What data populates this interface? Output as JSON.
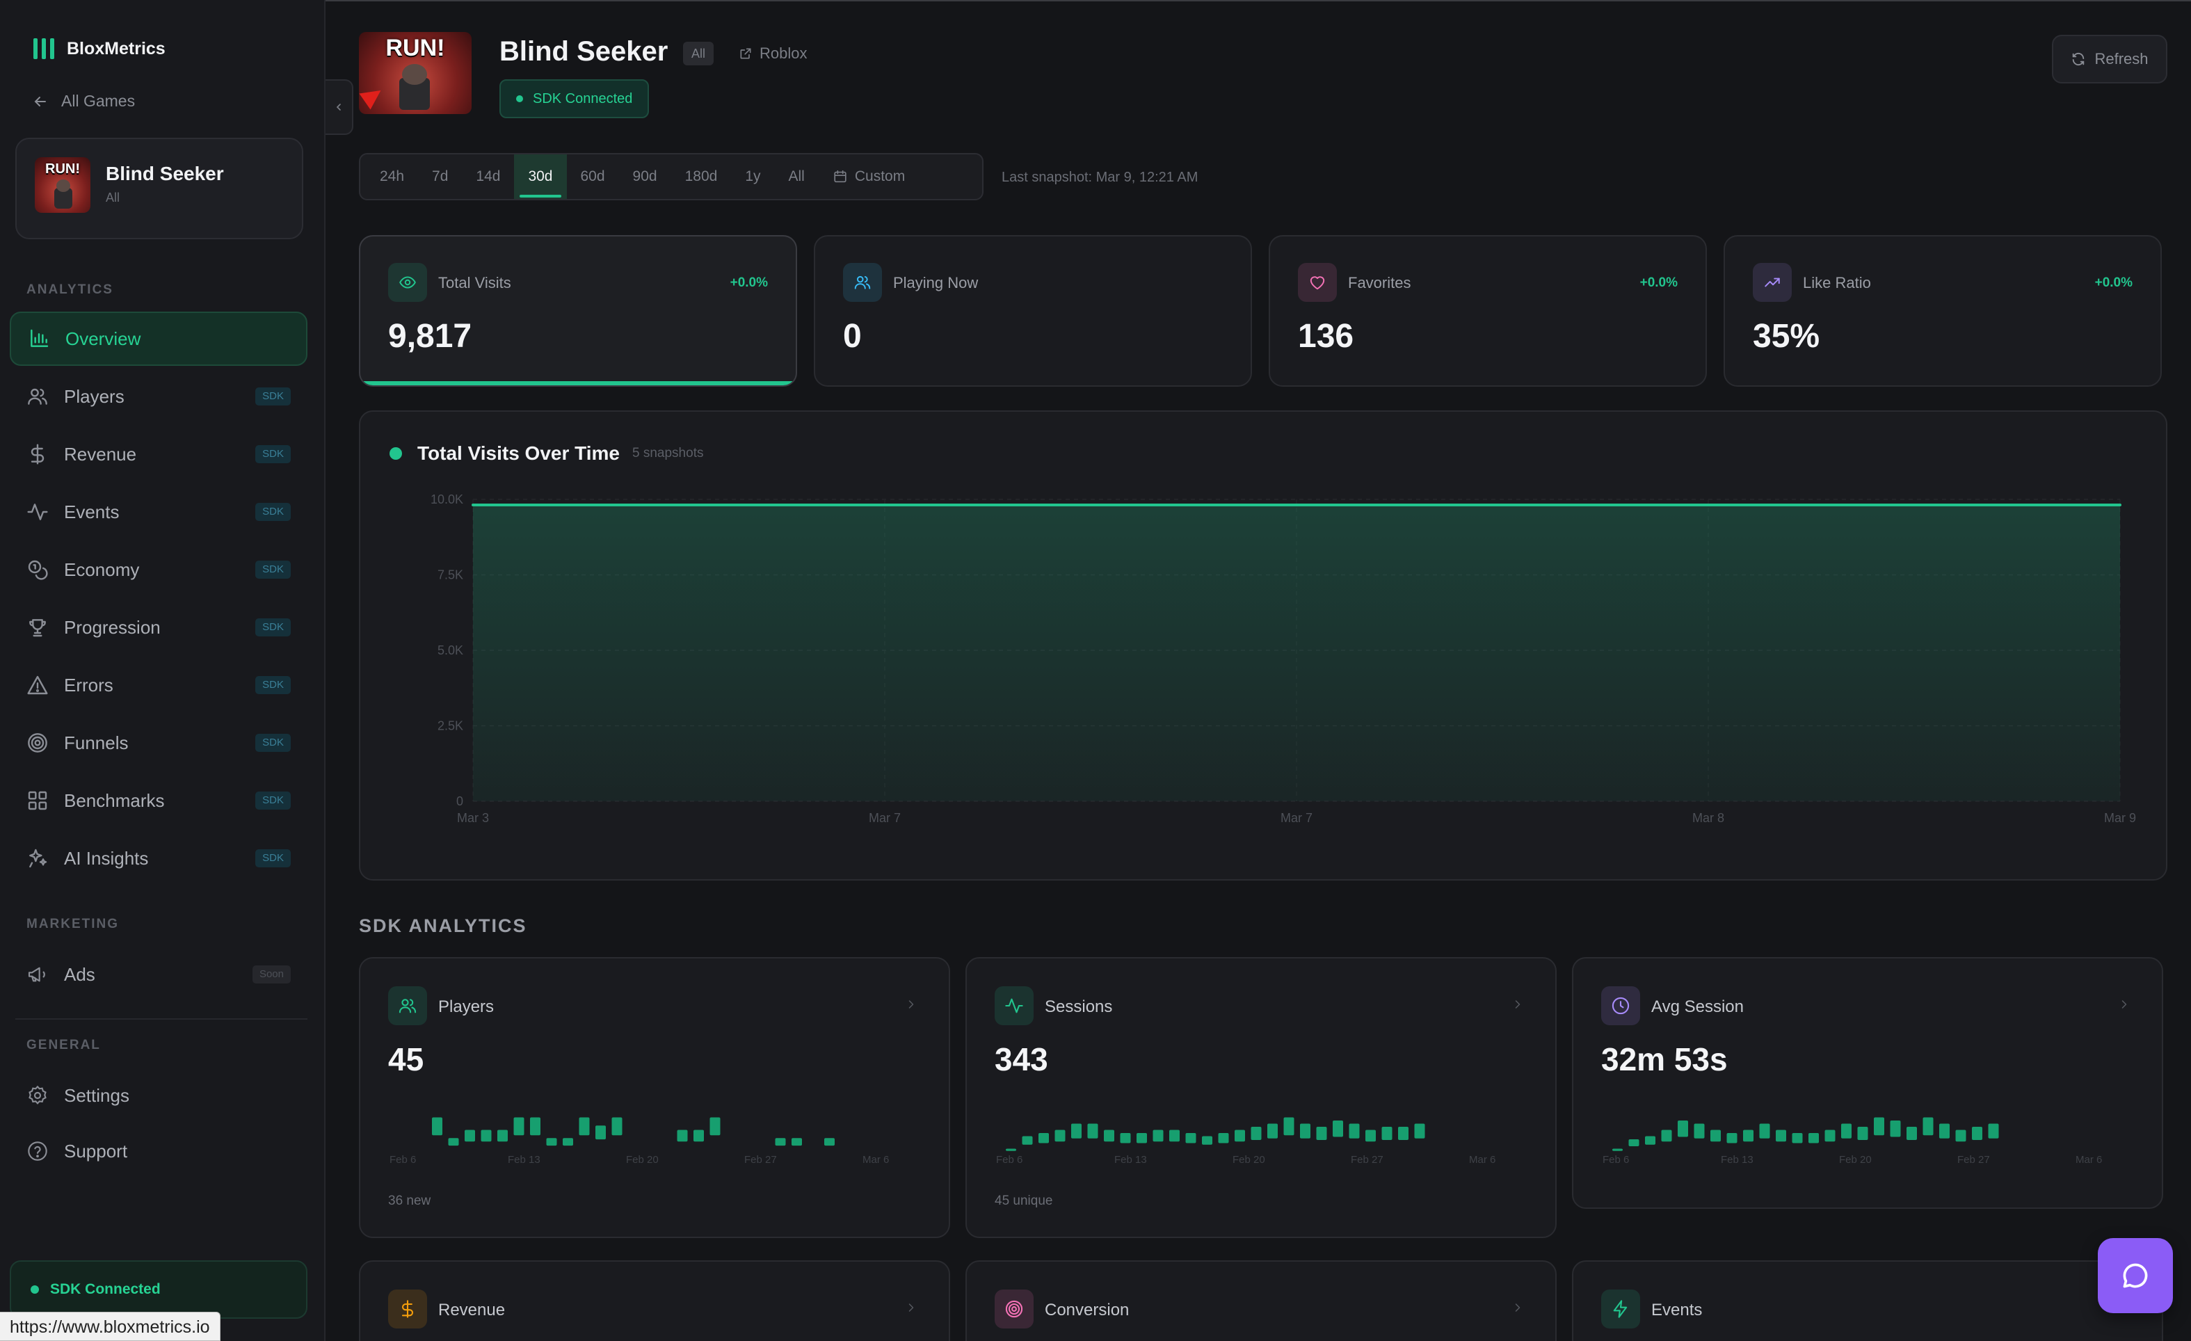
{
  "brand": {
    "name": "BloxMetrics"
  },
  "sidebar": {
    "back_label": "All Games",
    "game": {
      "name": "Blind Seeker",
      "sub": "All",
      "thumb_text": "RUN!"
    },
    "analytics_label": "ANALYTICS",
    "items": [
      {
        "label": "Overview",
        "icon": "bar-chart-icon",
        "badge": ""
      },
      {
        "label": "Players",
        "icon": "users-icon",
        "badge": "SDK"
      },
      {
        "label": "Revenue",
        "icon": "dollar-icon",
        "badge": "SDK"
      },
      {
        "label": "Events",
        "icon": "activity-icon",
        "badge": "SDK"
      },
      {
        "label": "Economy",
        "icon": "coins-icon",
        "badge": "SDK"
      },
      {
        "label": "Progression",
        "icon": "trophy-icon",
        "badge": "SDK"
      },
      {
        "label": "Errors",
        "icon": "warning-icon",
        "badge": "SDK"
      },
      {
        "label": "Funnels",
        "icon": "target-icon",
        "badge": "SDK"
      },
      {
        "label": "Benchmarks",
        "icon": "grid-icon",
        "badge": "SDK"
      },
      {
        "label": "AI Insights",
        "icon": "sparkles-icon",
        "badge": "SDK"
      }
    ],
    "marketing_label": "MARKETING",
    "ads": {
      "label": "Ads",
      "badge": "Soon"
    },
    "general_label": "GENERAL",
    "settings_label": "Settings",
    "support_label": "Support",
    "sdk_status": "SDK Connected"
  },
  "status_url": "https://www.bloxmetrics.io",
  "header": {
    "title": "Blind Seeker",
    "badge": "All",
    "link": "Roblox",
    "sdk_status": "SDK Connected",
    "refresh": "Refresh",
    "thumb_text": "RUN!"
  },
  "ranges": [
    "24h",
    "7d",
    "14d",
    "30d",
    "60d",
    "90d",
    "180d",
    "1y",
    "All",
    "Custom"
  ],
  "active_range": "30d",
  "snapshot": "Last snapshot: Mar 9, 12:21 AM",
  "stats": [
    {
      "label": "Total Visits",
      "value": "9,817",
      "change": "+0.0%",
      "icon": "eye-icon",
      "color": "#22c58e"
    },
    {
      "label": "Playing Now",
      "value": "0",
      "change": "",
      "icon": "users-icon",
      "color": "#38bdf8"
    },
    {
      "label": "Favorites",
      "value": "136",
      "change": "+0.0%",
      "icon": "heart-icon",
      "color": "#f472b6"
    },
    {
      "label": "Like Ratio",
      "value": "35%",
      "change": "+0.0%",
      "icon": "trending-up-icon",
      "color": "#a78bfa"
    }
  ],
  "chart": {
    "title": "Total Visits Over Time",
    "subtitle": "5 snapshots"
  },
  "chart_data": {
    "type": "area",
    "title": "Total Visits Over Time",
    "x": [
      "Mar 3",
      "Mar 7",
      "Mar 7",
      "Mar 8",
      "Mar 9"
    ],
    "series": [
      {
        "values": [
          9817,
          9817,
          9817,
          9817,
          9817
        ]
      }
    ],
    "yticks": [
      "0",
      "2.5K",
      "5.0K",
      "7.5K",
      "10.0K"
    ],
    "ylim": [
      0,
      10000
    ],
    "grid": true,
    "color": "#22c58e"
  },
  "sdk_section": "SDK ANALYTICS",
  "metrics": [
    {
      "label": "Players",
      "value": "45",
      "foot": "36 new",
      "icon": "users-icon",
      "color": "#22c58e",
      "bars": [
        0,
        0,
        0.55,
        0.22,
        0.35,
        0.35,
        0.35,
        0.55,
        0.55,
        0.22,
        0.22,
        0.55,
        0.42,
        0.55,
        0,
        0,
        0,
        0.35,
        0.35,
        0.55,
        0,
        0,
        0,
        0.22,
        0.22,
        0,
        0.22,
        0,
        0,
        0,
        0
      ]
    },
    {
      "label": "Sessions",
      "value": "343",
      "foot": "45 unique",
      "icon": "activity-icon",
      "color": "#22c58e",
      "bars": [
        0.05,
        0.25,
        0.3,
        0.35,
        0.45,
        0.45,
        0.35,
        0.3,
        0.3,
        0.35,
        0.35,
        0.3,
        0.25,
        0.3,
        0.35,
        0.4,
        0.45,
        0.55,
        0.45,
        0.4,
        0.5,
        0.45,
        0.35,
        0.4,
        0.4,
        0.45,
        0,
        0,
        0,
        0
      ]
    },
    {
      "label": "Avg Session",
      "value": "32m 53s",
      "foot": "",
      "icon": "clock-icon",
      "color": "#a78bfa",
      "bars": [
        0.05,
        0.2,
        0.25,
        0.35,
        0.5,
        0.45,
        0.35,
        0.3,
        0.35,
        0.45,
        0.35,
        0.3,
        0.3,
        0.35,
        0.45,
        0.4,
        0.55,
        0.5,
        0.4,
        0.55,
        0.45,
        0.35,
        0.4,
        0.45,
        0,
        0,
        0,
        0,
        0
      ]
    }
  ],
  "spark_ticks": [
    "Feb 6",
    "Feb 13",
    "Feb 20",
    "Feb 27",
    "Mar 6"
  ],
  "metrics_row2": [
    {
      "label": "Revenue",
      "icon": "dollar-icon",
      "color": "#f59e0b"
    },
    {
      "label": "Conversion",
      "icon": "target-icon",
      "color": "#f472b6"
    },
    {
      "label": "Events",
      "icon": "zap-icon",
      "color": "#22c58e"
    }
  ]
}
